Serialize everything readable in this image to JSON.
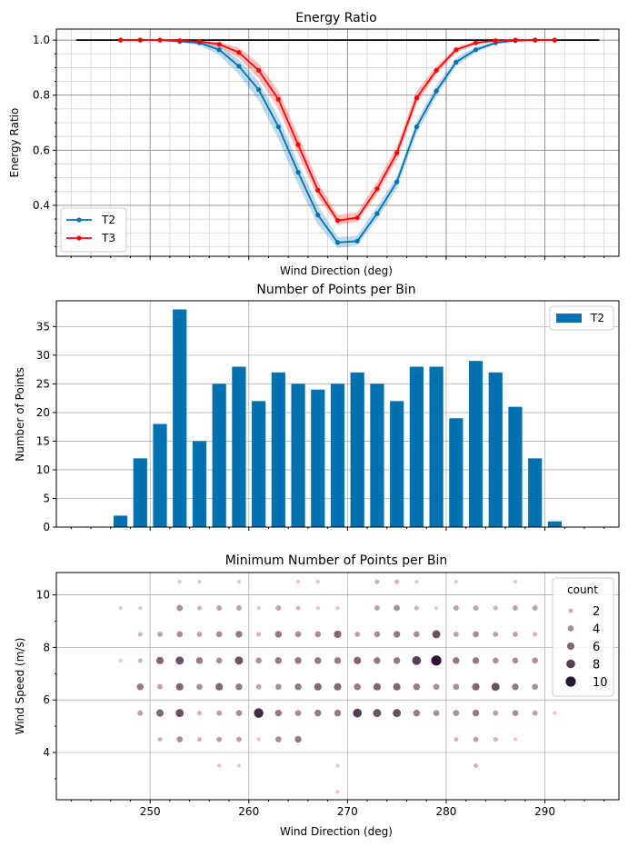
{
  "chart_data": [
    {
      "type": "line",
      "title": "Energy Ratio",
      "xlabel": "Wind Direction (deg)",
      "ylabel": "Energy Ratio",
      "xlim": [
        240.5,
        297.5
      ],
      "ylim": [
        0.215,
        1.04
      ],
      "yticks": [
        0.4,
        0.6,
        0.8,
        1.0
      ],
      "ytick_labels": [
        "0.4",
        "0.6",
        "0.8",
        "1.0"
      ],
      "grid": true,
      "legend_position": "lower-left",
      "reference_line": {
        "x": [
          242.5,
          295.5
        ],
        "y": 1.0,
        "color": "#000000"
      },
      "x": [
        247,
        249,
        251,
        253,
        255,
        257,
        259,
        261,
        263,
        265,
        267,
        269,
        271,
        273,
        275,
        277,
        279,
        281,
        283,
        285,
        287,
        289,
        291
      ],
      "series": [
        {
          "name": "T2",
          "color": "#0072b2",
          "values": [
            1.0,
            1.0,
            1.0,
            0.995,
            0.99,
            0.965,
            0.905,
            0.82,
            0.685,
            0.52,
            0.365,
            0.265,
            0.27,
            0.37,
            0.485,
            0.685,
            0.815,
            0.92,
            0.965,
            0.99,
            0.998,
            1.0,
            1.0
          ],
          "lower": [
            1.0,
            1.0,
            0.998,
            0.992,
            0.982,
            0.945,
            0.875,
            0.78,
            0.64,
            0.475,
            0.33,
            0.245,
            0.255,
            0.35,
            0.46,
            0.66,
            0.795,
            0.905,
            0.955,
            0.985,
            0.996,
            1.0,
            1.0
          ],
          "upper": [
            1.0,
            1.0,
            1.0,
            0.998,
            0.995,
            0.978,
            0.93,
            0.85,
            0.72,
            0.555,
            0.4,
            0.285,
            0.29,
            0.395,
            0.505,
            0.705,
            0.835,
            0.935,
            0.975,
            0.995,
            1.0,
            1.0,
            1.0
          ]
        },
        {
          "name": "T3",
          "color": "#ff0000",
          "values": [
            1.0,
            1.0,
            1.0,
            0.998,
            0.995,
            0.985,
            0.955,
            0.89,
            0.785,
            0.62,
            0.455,
            0.345,
            0.355,
            0.46,
            0.59,
            0.79,
            0.89,
            0.965,
            0.99,
            0.998,
            1.0,
            1.0,
            1.0
          ],
          "lower": [
            1.0,
            1.0,
            1.0,
            0.996,
            0.99,
            0.975,
            0.935,
            0.86,
            0.75,
            0.585,
            0.43,
            0.33,
            0.34,
            0.44,
            0.565,
            0.77,
            0.875,
            0.955,
            0.985,
            0.996,
            1.0,
            1.0,
            1.0
          ],
          "upper": [
            1.0,
            1.0,
            1.0,
            1.0,
            0.998,
            0.993,
            0.972,
            0.915,
            0.815,
            0.655,
            0.485,
            0.365,
            0.375,
            0.485,
            0.615,
            0.815,
            0.905,
            0.975,
            0.995,
            1.0,
            1.0,
            1.0,
            1.0
          ]
        }
      ]
    },
    {
      "type": "bar",
      "title": "Number of Points per Bin",
      "xlabel": "",
      "ylabel": "Number of Points",
      "xlim": [
        240.5,
        297.5
      ],
      "ylim": [
        0,
        39.5
      ],
      "yticks": [
        0,
        5,
        10,
        15,
        20,
        25,
        30,
        35
      ],
      "ytick_labels": [
        "0",
        "5",
        "10",
        "15",
        "20",
        "25",
        "30",
        "35"
      ],
      "grid": true,
      "legend_position": "top-right",
      "color": "#0072b2",
      "series_name": "T2",
      "categories": [
        247,
        249,
        251,
        253,
        255,
        257,
        259,
        261,
        263,
        265,
        267,
        269,
        271,
        273,
        275,
        277,
        279,
        281,
        283,
        285,
        287,
        289,
        291
      ],
      "values": [
        2,
        12,
        18,
        38,
        15,
        25,
        28,
        22,
        27,
        25,
        24,
        25,
        27,
        25,
        22,
        28,
        28,
        19,
        29,
        27,
        21,
        12,
        1
      ]
    },
    {
      "type": "scatter",
      "title": "Minimum Number of Points per Bin",
      "xlabel": "Wind Direction (deg)",
      "ylabel": "Wind Speed (m/s)",
      "xlim": [
        240.5,
        297.5
      ],
      "ylim": [
        2.2,
        10.85
      ],
      "xticks": [
        250,
        260,
        270,
        280,
        290
      ],
      "xtick_labels": [
        "250",
        "260",
        "270",
        "280",
        "290"
      ],
      "yticks": [
        4,
        6,
        8,
        10
      ],
      "ytick_labels": [
        "4",
        "6",
        "8",
        "10"
      ],
      "grid": true,
      "legend_position": "top-right",
      "legend_title": "count",
      "legend_counts": [
        2,
        4,
        6,
        8,
        10
      ],
      "legend_labels": [
        "2",
        "4",
        "6",
        "8",
        "10"
      ],
      "points": [
        [
          253,
          10.5,
          1
        ],
        [
          255,
          10.5,
          1
        ],
        [
          259,
          10.5,
          1
        ],
        [
          265,
          10.5,
          1
        ],
        [
          267,
          10.5,
          1
        ],
        [
          273,
          10.5,
          2
        ],
        [
          275,
          10.5,
          2
        ],
        [
          277,
          10.5,
          1
        ],
        [
          281,
          10.5,
          1
        ],
        [
          287,
          10.5,
          1
        ],
        [
          247,
          9.5,
          1
        ],
        [
          249,
          9.5,
          1
        ],
        [
          253,
          9.5,
          4
        ],
        [
          255,
          9.5,
          2
        ],
        [
          257,
          9.5,
          3
        ],
        [
          259,
          9.5,
          3
        ],
        [
          261,
          9.5,
          1
        ],
        [
          263,
          9.5,
          3
        ],
        [
          265,
          9.5,
          2
        ],
        [
          267,
          9.5,
          1
        ],
        [
          269,
          9.5,
          1
        ],
        [
          273,
          9.5,
          3
        ],
        [
          275,
          9.5,
          4
        ],
        [
          277,
          9.5,
          2
        ],
        [
          279,
          9.5,
          1
        ],
        [
          281,
          9.5,
          3
        ],
        [
          283,
          9.5,
          3
        ],
        [
          285,
          9.5,
          2
        ],
        [
          287,
          9.5,
          3
        ],
        [
          289,
          9.5,
          3
        ],
        [
          249,
          8.5,
          2
        ],
        [
          251,
          8.5,
          3
        ],
        [
          253,
          8.5,
          4
        ],
        [
          255,
          8.5,
          3
        ],
        [
          257,
          8.5,
          4
        ],
        [
          259,
          8.5,
          5
        ],
        [
          261,
          8.5,
          2
        ],
        [
          263,
          8.5,
          5
        ],
        [
          265,
          8.5,
          4
        ],
        [
          267,
          8.5,
          4
        ],
        [
          269,
          8.5,
          6
        ],
        [
          271,
          8.5,
          3
        ],
        [
          273,
          8.5,
          4
        ],
        [
          275,
          8.5,
          5
        ],
        [
          277,
          8.5,
          4
        ],
        [
          279,
          8.5,
          7
        ],
        [
          281,
          8.5,
          3
        ],
        [
          283,
          8.5,
          4
        ],
        [
          285,
          8.5,
          3
        ],
        [
          287,
          8.5,
          3
        ],
        [
          289,
          8.5,
          2
        ],
        [
          247,
          7.5,
          1
        ],
        [
          249,
          7.5,
          2
        ],
        [
          251,
          7.5,
          6
        ],
        [
          253,
          7.5,
          7
        ],
        [
          255,
          7.5,
          5
        ],
        [
          257,
          7.5,
          4
        ],
        [
          259,
          7.5,
          7
        ],
        [
          261,
          7.5,
          4
        ],
        [
          263,
          7.5,
          5
        ],
        [
          265,
          7.5,
          5
        ],
        [
          267,
          7.5,
          5
        ],
        [
          269,
          7.5,
          5
        ],
        [
          271,
          7.5,
          6
        ],
        [
          273,
          7.5,
          5
        ],
        [
          275,
          7.5,
          5
        ],
        [
          277,
          7.5,
          8
        ],
        [
          279,
          7.5,
          10
        ],
        [
          281,
          7.5,
          5
        ],
        [
          283,
          7.5,
          5
        ],
        [
          285,
          7.5,
          4
        ],
        [
          287,
          7.5,
          4
        ],
        [
          289,
          7.5,
          4
        ],
        [
          249,
          6.5,
          5
        ],
        [
          251,
          6.5,
          3
        ],
        [
          253,
          6.5,
          6
        ],
        [
          255,
          6.5,
          4
        ],
        [
          257,
          6.5,
          6
        ],
        [
          259,
          6.5,
          5
        ],
        [
          261,
          6.5,
          3
        ],
        [
          263,
          6.5,
          4
        ],
        [
          265,
          6.5,
          5
        ],
        [
          267,
          6.5,
          6
        ],
        [
          269,
          6.5,
          6
        ],
        [
          271,
          6.5,
          5
        ],
        [
          273,
          6.5,
          6
        ],
        [
          275,
          6.5,
          6
        ],
        [
          277,
          6.5,
          5
        ],
        [
          279,
          6.5,
          4
        ],
        [
          281,
          6.5,
          4
        ],
        [
          283,
          6.5,
          6
        ],
        [
          285,
          6.5,
          7
        ],
        [
          287,
          6.5,
          5
        ],
        [
          289,
          6.5,
          4
        ],
        [
          249,
          5.5,
          3
        ],
        [
          251,
          5.5,
          6
        ],
        [
          253,
          5.5,
          7
        ],
        [
          255,
          5.5,
          2
        ],
        [
          257,
          5.5,
          3
        ],
        [
          259,
          5.5,
          4
        ],
        [
          261,
          5.5,
          9
        ],
        [
          263,
          5.5,
          5
        ],
        [
          265,
          5.5,
          4
        ],
        [
          267,
          5.5,
          5
        ],
        [
          269,
          5.5,
          5
        ],
        [
          271,
          5.5,
          8
        ],
        [
          273,
          5.5,
          7
        ],
        [
          275,
          5.5,
          7
        ],
        [
          277,
          5.5,
          5
        ],
        [
          279,
          5.5,
          4
        ],
        [
          281,
          5.5,
          4
        ],
        [
          283,
          5.5,
          5
        ],
        [
          285,
          5.5,
          3
        ],
        [
          287,
          5.5,
          4
        ],
        [
          289,
          5.5,
          3
        ],
        [
          291,
          5.5,
          1
        ],
        [
          251,
          4.5,
          2
        ],
        [
          253,
          4.5,
          4
        ],
        [
          255,
          4.5,
          2
        ],
        [
          257,
          4.5,
          3
        ],
        [
          259,
          4.5,
          3
        ],
        [
          261,
          4.5,
          1
        ],
        [
          263,
          4.5,
          4
        ],
        [
          265,
          4.5,
          5
        ],
        [
          281,
          4.5,
          2
        ],
        [
          283,
          4.5,
          3
        ],
        [
          285,
          4.5,
          2
        ],
        [
          287,
          4.5,
          1
        ],
        [
          257,
          3.5,
          1
        ],
        [
          259,
          3.5,
          1
        ],
        [
          269,
          3.5,
          1
        ],
        [
          283,
          3.5,
          2
        ],
        [
          269,
          2.5,
          1
        ]
      ]
    }
  ]
}
